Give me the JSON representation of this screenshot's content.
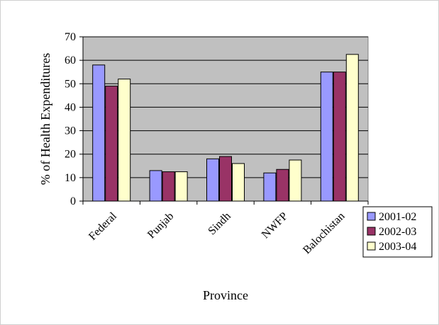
{
  "chart_data": {
    "type": "bar",
    "title": "",
    "xlabel": "Province",
    "ylabel": "% of Health Expenditures",
    "categories": [
      "Federal",
      "Punjab",
      "Sindh",
      "NWFP",
      "Balochistan"
    ],
    "series": [
      {
        "name": "2001-02",
        "color": "#9999ff",
        "values": [
          58,
          13,
          18,
          12,
          55
        ]
      },
      {
        "name": "2002-03",
        "color": "#993366",
        "values": [
          49,
          12.5,
          19,
          13.5,
          55
        ]
      },
      {
        "name": "2003-04",
        "color": "#ffffcc",
        "values": [
          52,
          12.5,
          16,
          17.5,
          62.5
        ]
      }
    ],
    "ylim": [
      0,
      70
    ],
    "yticks": [
      0,
      10,
      20,
      30,
      40,
      50,
      60,
      70
    ],
    "grid": true,
    "plot_background": "#c0c0c0",
    "legend_position": "right"
  }
}
